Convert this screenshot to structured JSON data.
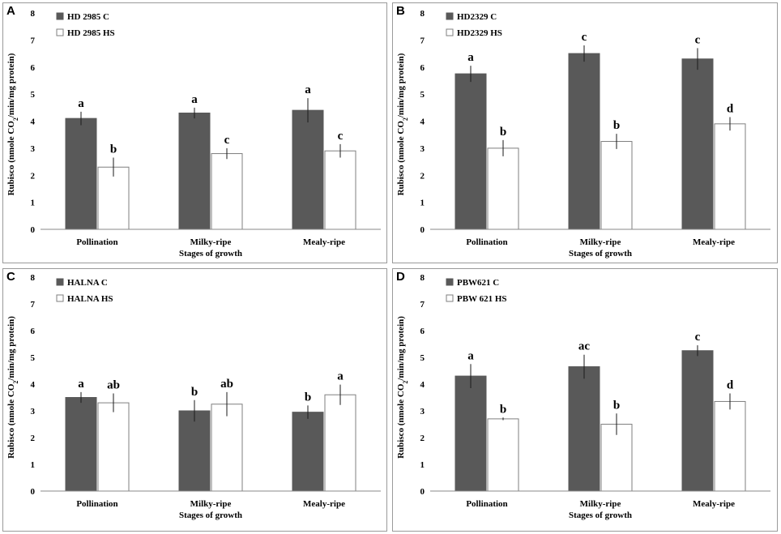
{
  "colors": {
    "control": "#595959",
    "heat_stress": "#ffffff",
    "edge": "#3f3f3f",
    "axis": "#888888"
  },
  "chart_data": [
    {
      "id": "A",
      "type": "bar",
      "panel_label": "A",
      "ylabel_parts": [
        "Rubisco (nmole CO",
        "2",
        "/min/mg protein)"
      ],
      "xlabel": "Stages of growth",
      "categories": [
        "Pollination",
        "Milky-ripe",
        "Mealy-ripe"
      ],
      "ylim": [
        0,
        8
      ],
      "yticks": [
        "0",
        "1",
        "2",
        "3",
        "4",
        "5",
        "6",
        "7",
        "8"
      ],
      "grid": false,
      "legend_position": "top-left",
      "series": [
        {
          "name": "HD 2985 C",
          "values": [
            4.1,
            4.3,
            4.4
          ],
          "errors": [
            0.25,
            0.2,
            0.45
          ],
          "letters": [
            "a",
            "a",
            "a"
          ]
        },
        {
          "name": "HD 2985 HS",
          "values": [
            2.3,
            2.8,
            2.9
          ],
          "errors": [
            0.35,
            0.2,
            0.25
          ],
          "letters": [
            "b",
            "c",
            "c"
          ]
        }
      ]
    },
    {
      "id": "B",
      "type": "bar",
      "panel_label": "B",
      "ylabel_parts": [
        "Rubisco (nmole CO",
        "2",
        "/min/mg protein)"
      ],
      "xlabel": "Stages of growth",
      "categories": [
        "Pollination",
        "Milky-ripe",
        "Mealy-ripe"
      ],
      "ylim": [
        0,
        8
      ],
      "yticks": [
        "0",
        "1",
        "2",
        "3",
        "4",
        "5",
        "6",
        "7",
        "8"
      ],
      "grid": false,
      "legend_position": "top-left",
      "series": [
        {
          "name": "HD2329 C",
          "values": [
            5.75,
            6.5,
            6.3
          ],
          "errors": [
            0.3,
            0.3,
            0.4
          ],
          "letters": [
            "a",
            "c",
            "c"
          ]
        },
        {
          "name": "HD2329 HS",
          "values": [
            3.0,
            3.25,
            3.9
          ],
          "errors": [
            0.3,
            0.28,
            0.25
          ],
          "letters": [
            "b",
            "b",
            "d"
          ]
        }
      ]
    },
    {
      "id": "C",
      "type": "bar",
      "panel_label": "C",
      "ylabel_parts": [
        "Rubisco (nmole CO",
        "2",
        "/min/mg protein)"
      ],
      "xlabel": "Stages of growth",
      "categories": [
        "Pollination",
        "Milky-ripe",
        "Mealy-ripe"
      ],
      "ylim": [
        0,
        8
      ],
      "yticks": [
        "0",
        "1",
        "2",
        "3",
        "4",
        "5",
        "6",
        "7",
        "8"
      ],
      "grid": false,
      "legend_position": "top-left",
      "series": [
        {
          "name": "HALNA C",
          "values": [
            3.5,
            3.0,
            2.95
          ],
          "errors": [
            0.2,
            0.4,
            0.25
          ],
          "letters": [
            "a",
            "b",
            "b"
          ]
        },
        {
          "name": "HALNA HS",
          "values": [
            3.3,
            3.25,
            3.6
          ],
          "errors": [
            0.35,
            0.45,
            0.38
          ],
          "letters": [
            "ab",
            "ab",
            "a"
          ]
        }
      ]
    },
    {
      "id": "D",
      "type": "bar",
      "panel_label": "D",
      "ylabel_parts": [
        "Rubisco (nmole CO",
        "2",
        "/min/mg protein)"
      ],
      "xlabel": "Stages of growth",
      "categories": [
        "Pollination",
        "Milky-ripe",
        "Mealy-ripe"
      ],
      "ylim": [
        0,
        8
      ],
      "yticks": [
        "0",
        "1",
        "2",
        "3",
        "4",
        "5",
        "6",
        "7",
        "8"
      ],
      "grid": false,
      "legend_position": "top-left",
      "series": [
        {
          "name": "PBW621 C",
          "values": [
            4.3,
            4.65,
            5.25
          ],
          "errors": [
            0.45,
            0.45,
            0.2
          ],
          "letters": [
            "a",
            "ac",
            "c"
          ]
        },
        {
          "name": "PBW 621 HS",
          "values": [
            2.7,
            2.5,
            3.35
          ],
          "errors": [
            0.05,
            0.4,
            0.3
          ],
          "letters": [
            "b",
            "b",
            "d"
          ]
        }
      ]
    }
  ]
}
